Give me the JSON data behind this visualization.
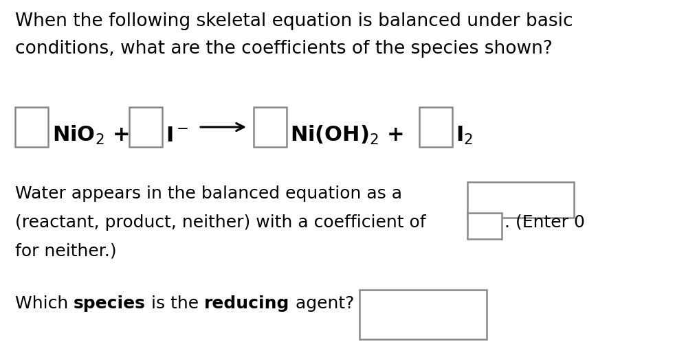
{
  "bg_color": "#ffffff",
  "title_line1": "When the following skeletal equation is balanced under basic",
  "title_line2": "conditions, what are the coefficients of the species shown?",
  "title_fontsize": 19,
  "eq_fontsize": 22,
  "body_fontsize": 18,
  "box_color": "#888888",
  "text_color": "#000000",
  "water_line1": "Water appears in the balanced equation as a",
  "water_line2": "(reactant, product, neither) with a coefficient of",
  "water_line3": ". (Enter 0",
  "water_line4": "for neither.)",
  "reducing_pre": "Which ",
  "reducing_b1": "species",
  "reducing_mid": " is the ",
  "reducing_b2": "reducing",
  "reducing_end": " agent?"
}
